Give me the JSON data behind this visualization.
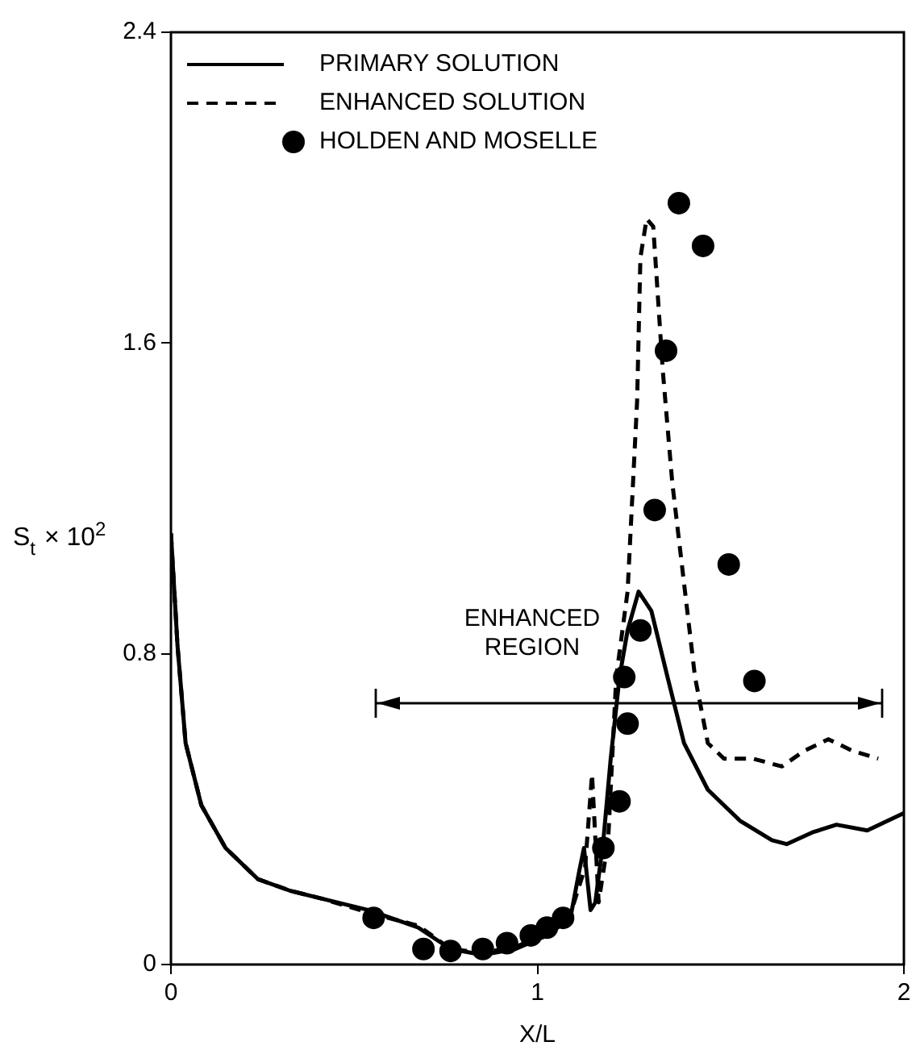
{
  "chart_data": {
    "type": "line",
    "xlabel": "X/L",
    "ylabel": "S$_{t}$ × 10$^{2}$",
    "xlim": [
      0,
      2
    ],
    "xticks": [
      0,
      1,
      2
    ],
    "ylim": [
      0,
      2.4
    ],
    "yticks": [
      0,
      0.8,
      1.6,
      2.4
    ],
    "grid": false,
    "legend": "top left",
    "series": [
      {
        "name": "PRIMARY SOLUTION",
        "line_style": "solid",
        "marker": "none",
        "color": "#000000",
        "x": [
          0,
          0.018,
          0.04,
          0.083,
          0.149,
          0.237,
          0.325,
          0.41,
          0.54,
          0.675,
          0.763,
          0.85,
          0.94,
          1.026,
          1.09,
          1.114,
          1.127,
          1.145,
          1.158,
          1.18,
          1.2,
          1.224,
          1.246,
          1.276,
          1.311,
          1.355,
          1.4,
          1.465,
          1.553,
          1.64,
          1.68,
          1.75,
          1.816,
          1.9,
          2.0
        ],
        "values": [
          1.11,
          0.82,
          0.57,
          0.41,
          0.3,
          0.22,
          0.19,
          0.17,
          0.14,
          0.095,
          0.04,
          0.025,
          0.04,
          0.075,
          0.12,
          0.24,
          0.3,
          0.14,
          0.16,
          0.32,
          0.53,
          0.74,
          0.86,
          0.96,
          0.91,
          0.74,
          0.57,
          0.45,
          0.37,
          0.32,
          0.31,
          0.34,
          0.36,
          0.345,
          0.39
        ]
      },
      {
        "name": "ENHANCED SOLUTION",
        "line_style": "dashed",
        "marker": "none",
        "color": "#000000",
        "x": [
          0,
          0.018,
          0.04,
          0.083,
          0.149,
          0.237,
          0.325,
          0.41,
          0.553,
          0.675,
          0.763,
          0.85,
          0.94,
          1.026,
          1.09,
          1.13,
          1.149,
          1.167,
          1.193,
          1.215,
          1.246,
          1.272,
          1.281,
          1.298,
          1.316,
          1.342,
          1.368,
          1.399,
          1.43,
          1.465,
          1.509,
          1.588,
          1.667,
          1.728,
          1.794,
          1.86,
          1.93
        ],
        "values": [
          1.11,
          0.82,
          0.57,
          0.41,
          0.3,
          0.22,
          0.19,
          0.17,
          0.13,
          0.1,
          0.04,
          0.03,
          0.045,
          0.08,
          0.13,
          0.25,
          0.49,
          0.16,
          0.32,
          0.74,
          0.96,
          1.45,
          1.82,
          1.92,
          1.9,
          1.53,
          1.24,
          0.99,
          0.74,
          0.57,
          0.53,
          0.53,
          0.51,
          0.55,
          0.58,
          0.55,
          0.53
        ]
      },
      {
        "name": "HOLDEN AND MOSELLE",
        "type": "scatter",
        "marker": "circle",
        "color": "#000000",
        "x": [
          0.553,
          0.689,
          0.763,
          0.851,
          0.917,
          0.982,
          1.026,
          1.07,
          1.18,
          1.224,
          1.246,
          1.237,
          1.281,
          1.32,
          1.351,
          1.386,
          1.452,
          1.522,
          1.592
        ],
        "values": [
          0.12,
          0.04,
          0.035,
          0.04,
          0.055,
          0.075,
          0.095,
          0.12,
          0.3,
          0.42,
          0.62,
          0.74,
          0.86,
          1.17,
          1.58,
          1.96,
          1.85,
          1.03,
          0.73
        ]
      }
    ],
    "annotations": [
      "ENHANCED REGION"
    ]
  }
}
